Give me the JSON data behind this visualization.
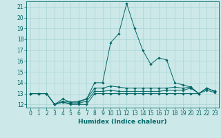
{
  "xlabel": "Humidex (Indice chaleur)",
  "background_color": "#cce8e8",
  "line_color": "#006666",
  "x_values": [
    0,
    1,
    2,
    3,
    4,
    5,
    6,
    7,
    8,
    9,
    10,
    11,
    12,
    13,
    14,
    15,
    16,
    17,
    18,
    19,
    20,
    21,
    22,
    23
  ],
  "lines": [
    [
      13,
      13,
      13,
      12,
      12.2,
      12.0,
      12.0,
      12.0,
      13.0,
      13.0,
      13.0,
      13.0,
      13.0,
      13.0,
      13.0,
      13.0,
      13.0,
      13.0,
      13.0,
      13.0,
      13.0,
      13.0,
      13.3,
      13.1
    ],
    [
      13,
      13,
      13,
      12,
      12.2,
      12.1,
      12.1,
      12.3,
      13.2,
      13.2,
      13.3,
      13.2,
      13.2,
      13.2,
      13.2,
      13.2,
      13.2,
      13.3,
      13.3,
      13.3,
      13.5,
      13.0,
      13.5,
      13.2
    ],
    [
      13,
      13,
      13,
      12,
      12.3,
      12.2,
      12.2,
      12.5,
      13.5,
      13.5,
      13.7,
      13.6,
      13.5,
      13.5,
      13.5,
      13.5,
      13.5,
      13.5,
      13.6,
      13.5,
      13.6,
      13.0,
      13.5,
      13.2
    ],
    [
      13,
      13,
      13,
      12,
      12.5,
      12.2,
      12.3,
      12.5,
      14.0,
      14.0,
      17.7,
      18.5,
      21.3,
      19.0,
      17.0,
      15.7,
      16.3,
      16.1,
      14.0,
      13.8,
      13.6,
      13.0,
      13.5,
      13.2
    ]
  ],
  "ylim": [
    11.7,
    21.5
  ],
  "yticks": [
    12,
    13,
    14,
    15,
    16,
    17,
    18,
    19,
    20,
    21
  ],
  "xlim": [
    -0.5,
    23.5
  ],
  "grid_color": "#aad4d4",
  "tick_color": "#006666",
  "label_fontsize": 5.5,
  "axis_fontsize": 6.5
}
